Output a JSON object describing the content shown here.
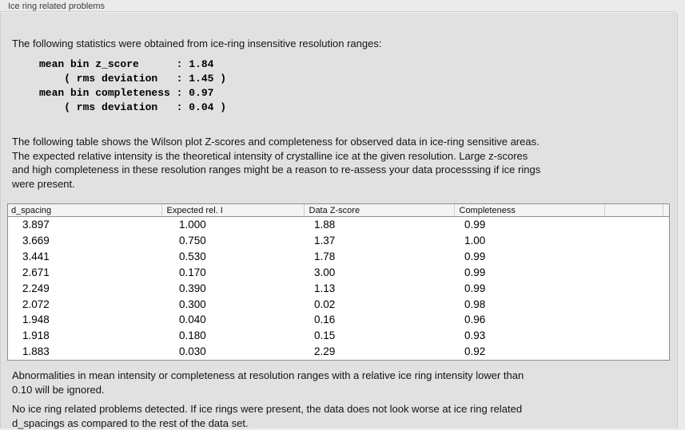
{
  "panel": {
    "title": "Ice ring related problems"
  },
  "intro_text": "The following statistics were obtained from ice-ring insensitive resolution ranges:",
  "stats": {
    "block": "mean bin z_score      : 1.84\n    ( rms deviation   : 1.45 )\nmean bin completeness : 0.97\n    ( rms deviation   : 0.04 )",
    "mean_bin_z_score": "1.84",
    "z_score_rms_deviation": "1.45",
    "mean_bin_completeness": "0.97",
    "completeness_rms_deviation": "0.04"
  },
  "table_intro": "The following table shows the Wilson plot Z-scores and completeness for observed data in ice-ring sensitive areas.\nThe expected relative intensity is the theoretical intensity of crystalline ice at the given resolution. Large z-scores\nand high completeness in these resolution ranges might be a reason to re-assess your data processsing if ice rings\nwere present.",
  "table": {
    "headers": [
      "d_spacing",
      "Expected rel. I",
      "Data Z-score",
      "Completeness",
      "",
      ""
    ],
    "rows": [
      [
        "3.897",
        "1.000",
        "1.88",
        "0.99"
      ],
      [
        "3.669",
        "0.750",
        "1.37",
        "1.00"
      ],
      [
        "3.441",
        "0.530",
        "1.78",
        "0.99"
      ],
      [
        "2.671",
        "0.170",
        "3.00",
        "0.99"
      ],
      [
        "2.249",
        "0.390",
        "1.13",
        "0.99"
      ],
      [
        "2.072",
        "0.300",
        "0.02",
        "0.98"
      ],
      [
        "1.948",
        "0.040",
        "0.16",
        "0.96"
      ],
      [
        "1.918",
        "0.180",
        "0.15",
        "0.93"
      ],
      [
        "1.883",
        "0.030",
        "2.29",
        "0.92"
      ]
    ]
  },
  "ignore_note": "Abnormalities in mean intensity or completeness at resolution ranges with a relative ice ring intensity lower than\n0.10 will be ignored.",
  "conclusion": "No ice ring related problems detected. If ice rings were present, the data does not look worse at ice ring related\nd_spacings as compared to the rest of the data set."
}
